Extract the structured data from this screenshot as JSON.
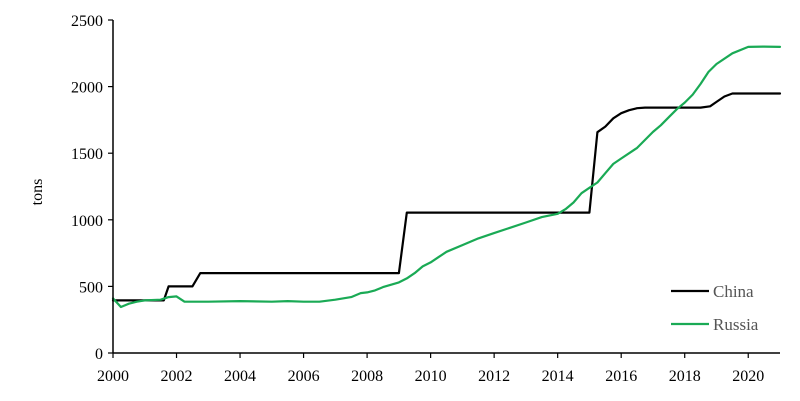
{
  "chart_data": {
    "type": "line",
    "title": "",
    "xlabel": "",
    "ylabel": "tons",
    "xlim": [
      2000,
      2021
    ],
    "ylim": [
      0,
      2500
    ],
    "x_ticks": [
      2000,
      2002,
      2004,
      2006,
      2008,
      2010,
      2012,
      2014,
      2016,
      2018,
      2020
    ],
    "x_tick_labels": [
      "2000",
      "2002",
      "2004",
      "2006",
      "2008",
      "2010",
      "2012",
      "2014",
      "2016",
      "2018",
      "2020"
    ],
    "y_ticks": [
      0,
      500,
      1000,
      1500,
      2000,
      2500
    ],
    "y_tick_labels": [
      "0",
      "500",
      "1000",
      "1500",
      "2000",
      "2500"
    ],
    "grid": false,
    "legend_position": "bottom-right",
    "series": [
      {
        "name": "China",
        "color": "#000000",
        "points": [
          [
            2000.0,
            395
          ],
          [
            2001.6,
            395
          ],
          [
            2001.75,
            500
          ],
          [
            2002.5,
            500
          ],
          [
            2002.75,
            600
          ],
          [
            2009.0,
            600
          ],
          [
            2009.25,
            1054
          ],
          [
            2015.0,
            1054
          ],
          [
            2015.25,
            1658
          ],
          [
            2015.5,
            1700
          ],
          [
            2015.75,
            1762
          ],
          [
            2016.0,
            1800
          ],
          [
            2016.25,
            1823
          ],
          [
            2016.5,
            1838
          ],
          [
            2016.75,
            1842
          ],
          [
            2018.5,
            1842
          ],
          [
            2018.8,
            1852
          ],
          [
            2019.0,
            1885
          ],
          [
            2019.25,
            1926
          ],
          [
            2019.5,
            1948
          ],
          [
            2021.0,
            1948
          ]
        ]
      },
      {
        "name": "Russia",
        "color": "#1aaa55",
        "points": [
          [
            2000.0,
            410
          ],
          [
            2000.25,
            345
          ],
          [
            2000.5,
            370
          ],
          [
            2000.75,
            385
          ],
          [
            2001.0,
            395
          ],
          [
            2001.5,
            400
          ],
          [
            2001.75,
            420
          ],
          [
            2002.0,
            425
          ],
          [
            2002.25,
            385
          ],
          [
            2003.0,
            385
          ],
          [
            2004.0,
            390
          ],
          [
            2005.0,
            385
          ],
          [
            2005.5,
            390
          ],
          [
            2006.0,
            385
          ],
          [
            2006.5,
            385
          ],
          [
            2007.0,
            400
          ],
          [
            2007.5,
            420
          ],
          [
            2007.8,
            450
          ],
          [
            2008.0,
            455
          ],
          [
            2008.25,
            470
          ],
          [
            2008.5,
            495
          ],
          [
            2009.0,
            530
          ],
          [
            2009.25,
            560
          ],
          [
            2009.5,
            600
          ],
          [
            2009.75,
            650
          ],
          [
            2010.0,
            680
          ],
          [
            2010.25,
            720
          ],
          [
            2010.5,
            760
          ],
          [
            2011.0,
            810
          ],
          [
            2011.5,
            860
          ],
          [
            2012.0,
            900
          ],
          [
            2012.5,
            940
          ],
          [
            2013.0,
            980
          ],
          [
            2013.5,
            1020
          ],
          [
            2014.0,
            1045
          ],
          [
            2014.25,
            1080
          ],
          [
            2014.5,
            1130
          ],
          [
            2014.75,
            1200
          ],
          [
            2015.0,
            1240
          ],
          [
            2015.25,
            1280
          ],
          [
            2015.5,
            1350
          ],
          [
            2015.75,
            1420
          ],
          [
            2016.0,
            1460
          ],
          [
            2016.5,
            1540
          ],
          [
            2017.0,
            1660
          ],
          [
            2017.25,
            1710
          ],
          [
            2017.5,
            1770
          ],
          [
            2017.75,
            1830
          ],
          [
            2018.0,
            1880
          ],
          [
            2018.25,
            1940
          ],
          [
            2018.5,
            2020
          ],
          [
            2018.75,
            2110
          ],
          [
            2019.0,
            2170
          ],
          [
            2019.5,
            2250
          ],
          [
            2020.0,
            2298
          ],
          [
            2020.5,
            2300
          ],
          [
            2021.0,
            2298
          ]
        ]
      }
    ]
  }
}
